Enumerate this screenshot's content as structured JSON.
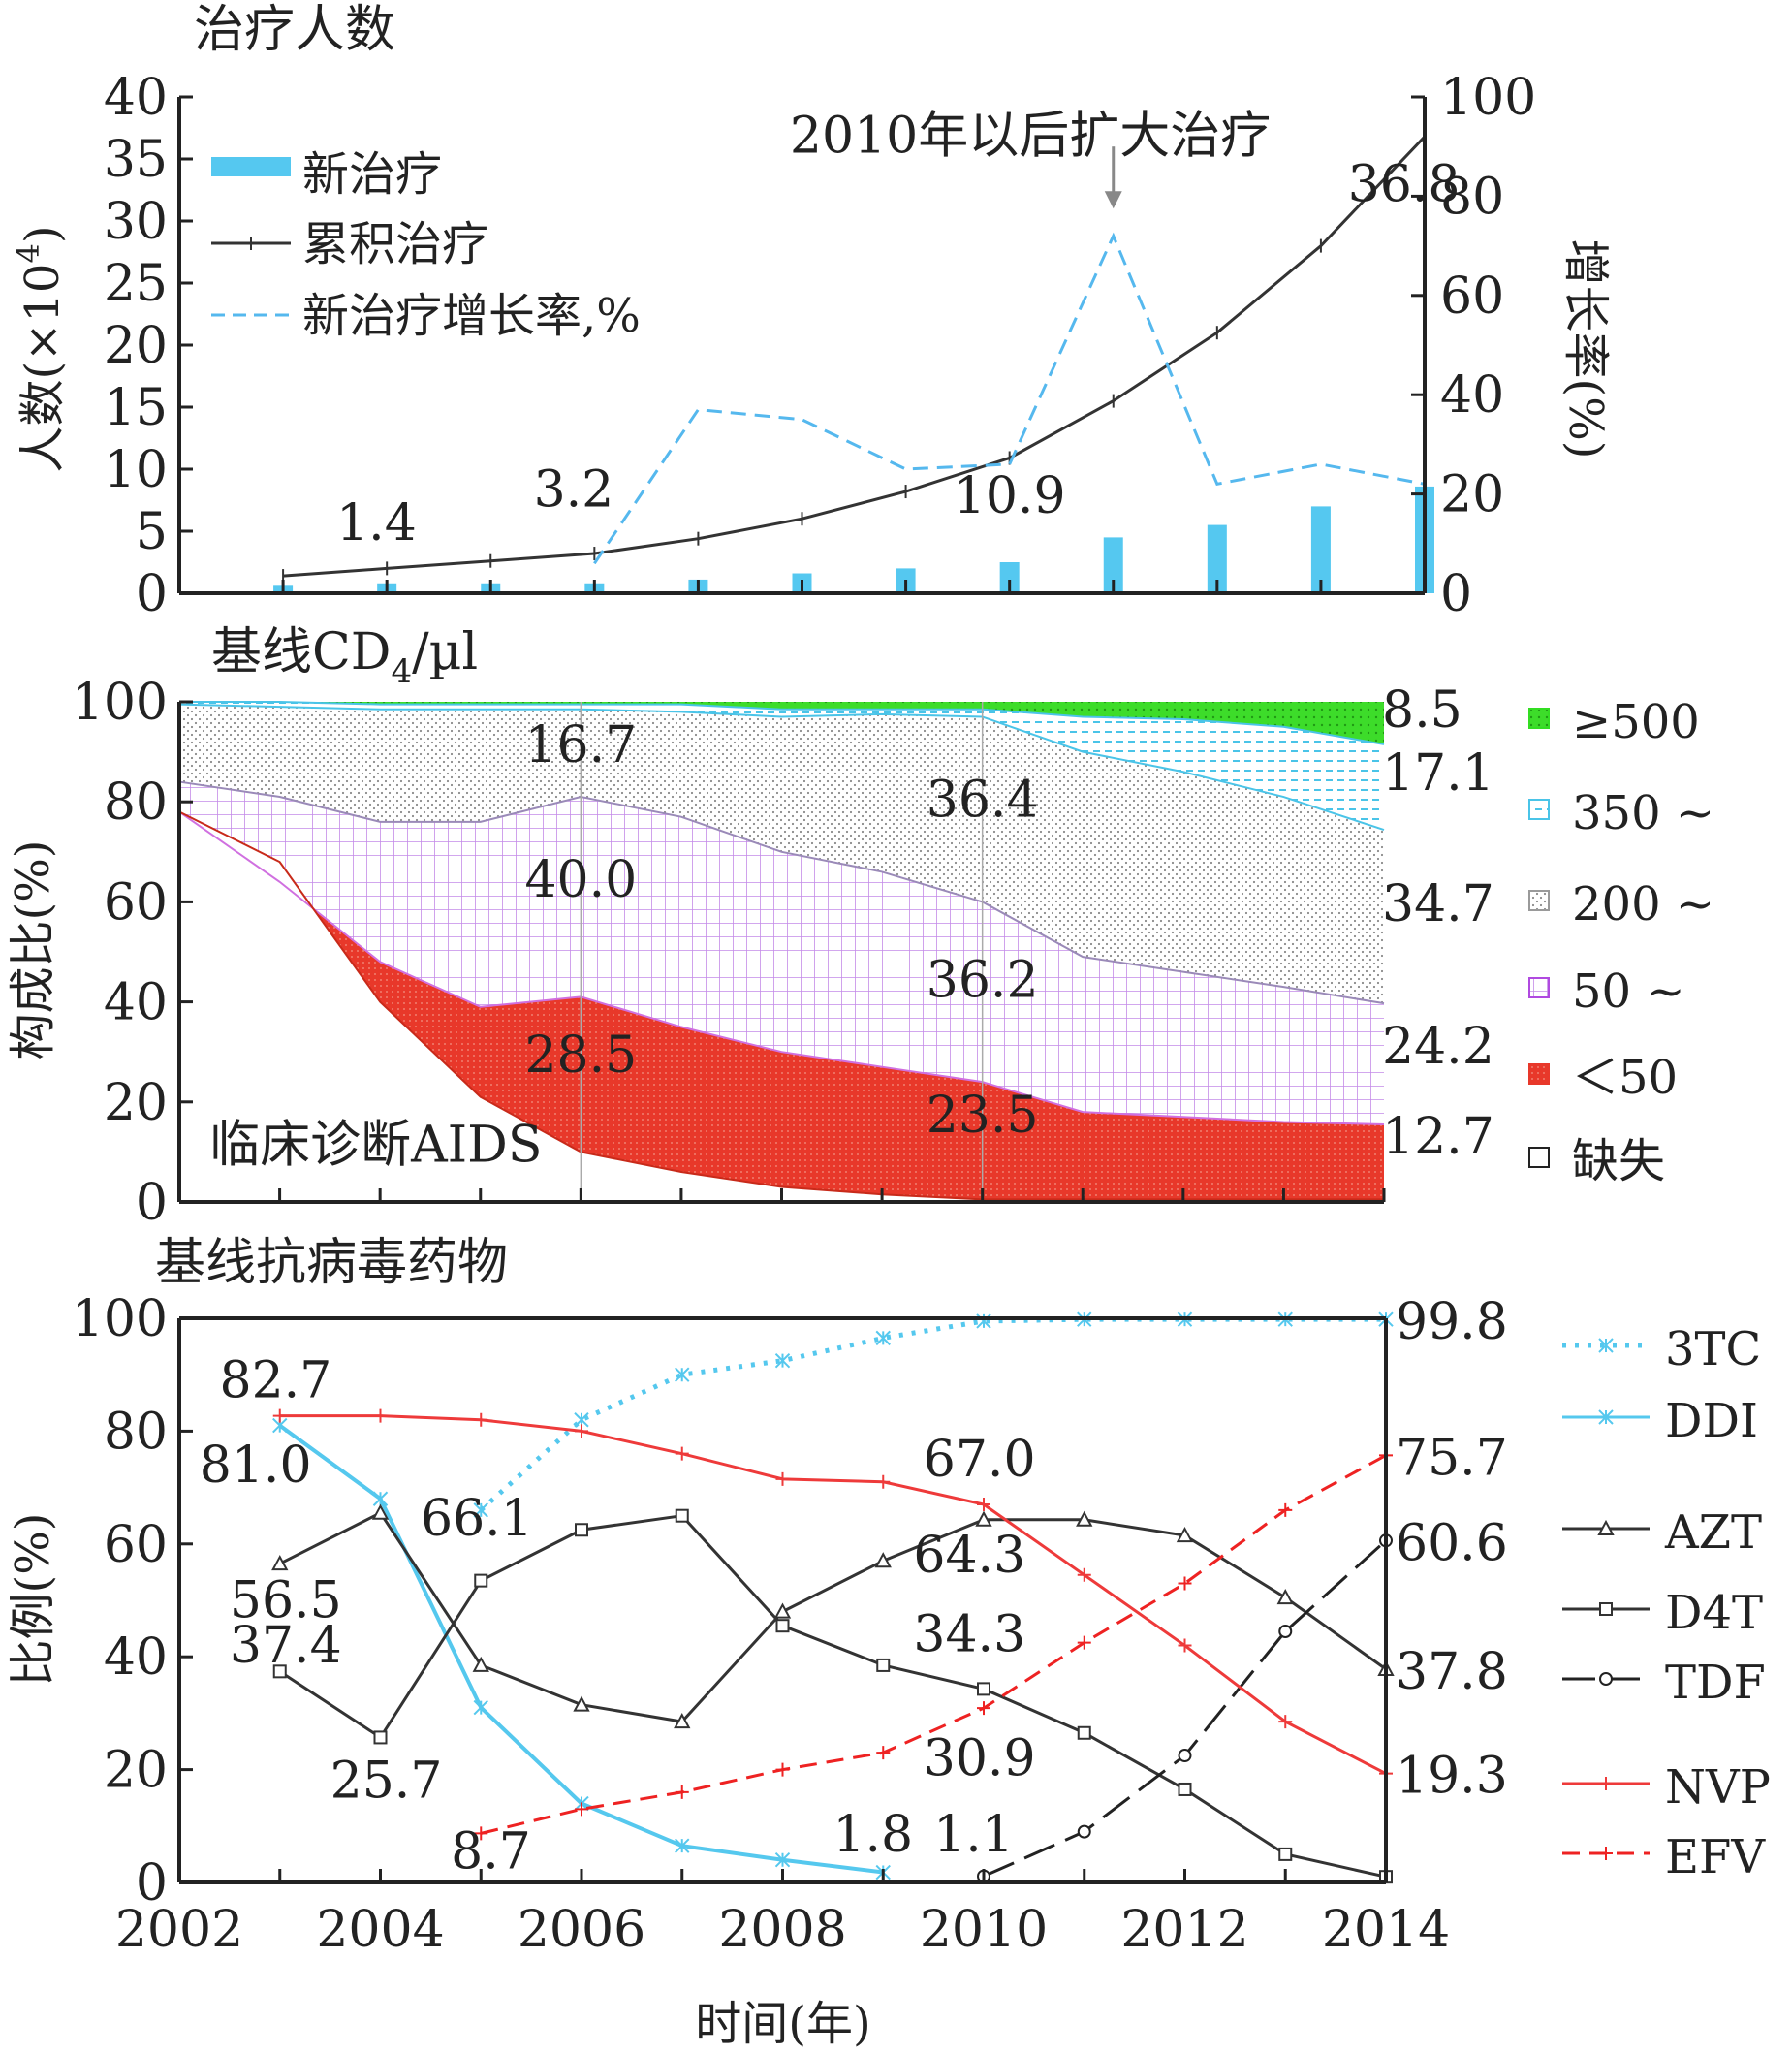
{
  "chart_data": [
    {
      "id": "panel_a",
      "type": "bar+line",
      "title": "治疗人数",
      "x": [
        2002,
        2003,
        2004,
        2005,
        2006,
        2007,
        2008,
        2009,
        2010,
        2011,
        2012,
        2013,
        2014
      ],
      "xlim": [
        2002,
        2014
      ],
      "y_left": {
        "label_text": "人数(×10",
        "label_sup": "4",
        "label_tail": ")",
        "lim": [
          0,
          40
        ],
        "ticks": [
          0,
          5,
          10,
          15,
          20,
          25,
          30,
          35,
          40
        ]
      },
      "y_right": {
        "label": "增长率(%)",
        "lim": [
          0,
          100
        ],
        "ticks": [
          0,
          20,
          40,
          60,
          80,
          100
        ]
      },
      "legend": [
        "新治疗",
        "累积治疗",
        "新治疗增长率,%"
      ],
      "series": [
        {
          "name": "新治疗",
          "kind": "bar",
          "color": "#55c8f0",
          "axis": "left",
          "x": [
            2003,
            2004,
            2005,
            2006,
            2007,
            2008,
            2009,
            2010,
            2011,
            2012,
            2013,
            2014
          ],
          "values": [
            0.6,
            0.8,
            0.8,
            0.8,
            1.1,
            1.6,
            2.0,
            2.5,
            4.5,
            5.5,
            7.0,
            8.6
          ]
        },
        {
          "name": "累积治疗",
          "kind": "line",
          "color": "#333333",
          "axis": "left",
          "x": [
            2003,
            2004,
            2005,
            2006,
            2007,
            2008,
            2009,
            2010,
            2011,
            2012,
            2013,
            2014
          ],
          "values": [
            1.4,
            2.0,
            2.6,
            3.2,
            4.4,
            6.0,
            8.2,
            10.9,
            15.5,
            21.0,
            28.0,
            36.8
          ]
        },
        {
          "name": "新治疗增长率,%",
          "kind": "line-dash",
          "color": "#55b8ee",
          "axis": "right",
          "x": [
            2006,
            2007,
            2008,
            2009,
            2010,
            2011,
            2012,
            2013,
            2014
          ],
          "values": [
            6,
            37,
            35,
            25,
            26,
            72,
            22,
            26,
            22
          ]
        }
      ],
      "annotations": [
        {
          "text": "1.4",
          "x": 2003.9,
          "y": 4.3
        },
        {
          "text": "3.2",
          "x": 2005.8,
          "y": 7.0
        },
        {
          "text": "10.9",
          "x": 2010.0,
          "y": 6.5
        },
        {
          "text": "36.8",
          "x": 2013.8,
          "y": 31.6
        },
        {
          "text": "2010年以后扩大治疗",
          "x": 2010.2,
          "y": 35.5
        }
      ],
      "arrow": {
        "x": 2011,
        "y_from": 36,
        "y_to": 31
      }
    },
    {
      "id": "panel_b",
      "type": "area",
      "title": "基线CD",
      "title_sub": "4",
      "title_tail": "/µl",
      "ylabel": "构成比(%)",
      "ylim": [
        0,
        100
      ],
      "yticks": [
        0,
        20,
        40,
        60,
        80,
        100
      ],
      "x": [
        2002,
        2003,
        2004,
        2005,
        2006,
        2007,
        2008,
        2009,
        2010,
        2011,
        2012,
        2013,
        2014
      ],
      "xlim": [
        2002,
        2014
      ],
      "layer_tops": {
        "clinical": [
          78,
          68,
          40,
          21,
          10,
          6,
          3,
          1.5,
          0.5,
          0.5,
          0.5,
          0.5,
          0.5
        ],
        "lt50": [
          78,
          64,
          48,
          39,
          41,
          35,
          30,
          27,
          24,
          18,
          17,
          16,
          15.5
        ],
        "s50": [
          84,
          81,
          76,
          76,
          81,
          77,
          70,
          66,
          60,
          49,
          46,
          43,
          39.7
        ],
        "s200": [
          99.5,
          99,
          98.5,
          98.5,
          98.5,
          98,
          97,
          97.5,
          97,
          90,
          86,
          81,
          74.4
        ],
        "s350": [
          100,
          100,
          99.5,
          99.5,
          99.5,
          99.5,
          98.5,
          98.5,
          98.5,
          97,
          96.5,
          95,
          91.5
        ]
      },
      "legend": [
        {
          "label": "≥500",
          "color": "#33dd22"
        },
        {
          "label": "350 ~",
          "color": "#4ac4e8"
        },
        {
          "label": "200 ~",
          "color": "#9a9a9a"
        },
        {
          "label": "50 ~",
          "color": "#b04ae0"
        },
        {
          "label": "＜50",
          "color": "#e8382a"
        },
        {
          "label": "缺失",
          "color": "#222222"
        }
      ],
      "annotations": [
        {
          "text": "16.7",
          "x": 2006,
          "y": 88
        },
        {
          "text": "40.0",
          "x": 2006,
          "y": 61
        },
        {
          "text": "28.5",
          "x": 2006,
          "y": 26
        },
        {
          "text": "36.4",
          "x": 2010,
          "y": 77
        },
        {
          "text": "36.2",
          "x": 2010,
          "y": 41
        },
        {
          "text": "23.5",
          "x": 2010,
          "y": 14
        },
        {
          "text": "临床诊断AIDS",
          "x": 2002.3,
          "y": 8
        }
      ],
      "right_labels": [
        "8.5",
        "17.1",
        "34.7",
        "24.2",
        "12.7"
      ]
    },
    {
      "id": "panel_c",
      "type": "line",
      "title": "基线抗病毒药物",
      "ylabel": "比例(%)",
      "xlabel": "时间(年)",
      "ylim": [
        0,
        100
      ],
      "yticks": [
        0,
        20,
        40,
        60,
        80,
        100
      ],
      "xticks": [
        2002,
        2004,
        2006,
        2008,
        2010,
        2012,
        2014
      ],
      "xlim": [
        2002,
        2014
      ],
      "series": [
        {
          "name": "3TC",
          "color": "#55c8ee",
          "dash": "dot",
          "marker": "x",
          "x": [
            2005,
            2006,
            2007,
            2008,
            2009,
            2010,
            2011,
            2012,
            2013,
            2014
          ],
          "values": [
            66,
            82,
            90,
            92.5,
            96.5,
            99.5,
            99.8,
            99.8,
            99.8,
            99.8
          ]
        },
        {
          "name": "DDI",
          "color": "#55c8ee",
          "dash": "solid",
          "marker": "x",
          "x": [
            2003,
            2004,
            2005,
            2006,
            2007,
            2008,
            2009
          ],
          "values": [
            81.0,
            68,
            31,
            14,
            6.5,
            4,
            1.8
          ]
        },
        {
          "name": "AZT",
          "color": "#333333",
          "dash": "solid",
          "marker": "triangle",
          "x": [
            2003,
            2004,
            2005,
            2006,
            2007,
            2008,
            2009,
            2010,
            2011,
            2012,
            2013,
            2014
          ],
          "values": [
            56.5,
            65.5,
            38.5,
            31.5,
            28.5,
            48,
            57,
            64.3,
            64.3,
            61.5,
            50.5,
            37.8
          ]
        },
        {
          "name": "D4T",
          "color": "#333333",
          "dash": "solid",
          "marker": "square",
          "x": [
            2003,
            2004,
            2005,
            2006,
            2007,
            2008,
            2009,
            2010,
            2011,
            2012,
            2013,
            2014
          ],
          "values": [
            37.4,
            25.7,
            53.5,
            62.5,
            65,
            45.5,
            38.5,
            34.3,
            26.5,
            16.5,
            5,
            1
          ]
        },
        {
          "name": "TDF",
          "color": "#222222",
          "dash": "longdash",
          "marker": "circle",
          "x": [
            2010,
            2011,
            2012,
            2013,
            2014
          ],
          "values": [
            1.1,
            9,
            22.5,
            44.5,
            60.6
          ]
        },
        {
          "name": "NVP",
          "color": "#ee3a3a",
          "dash": "solid",
          "marker": "plus",
          "x": [
            2003,
            2004,
            2005,
            2006,
            2007,
            2008,
            2009,
            2010,
            2011,
            2012,
            2013,
            2014
          ],
          "values": [
            82.7,
            82.7,
            82,
            80,
            76,
            71.5,
            71,
            67.0,
            54.5,
            42,
            28.5,
            19.3
          ]
        },
        {
          "name": "EFV",
          "color": "#ee2222",
          "dash": "dash",
          "marker": "plus",
          "x": [
            2005,
            2006,
            2007,
            2008,
            2009,
            2010,
            2011,
            2012,
            2013,
            2014
          ],
          "values": [
            8.7,
            13,
            16,
            20,
            23,
            30.9,
            42.5,
            53,
            66,
            75.7
          ]
        }
      ],
      "annotations": [
        {
          "text": "82.7",
          "x": 2002.4,
          "y": 86
        },
        {
          "text": "81.0",
          "x": 2002.2,
          "y": 71
        },
        {
          "text": "66.1",
          "x": 2004.4,
          "y": 61.5
        },
        {
          "text": "56.5",
          "x": 2002.5,
          "y": 47
        },
        {
          "text": "37.4",
          "x": 2002.5,
          "y": 39
        },
        {
          "text": "25.7",
          "x": 2003.5,
          "y": 15
        },
        {
          "text": "8.7",
          "x": 2004.7,
          "y": 2.5
        },
        {
          "text": "1.8",
          "x": 2008.5,
          "y": 5.5
        },
        {
          "text": "1.1",
          "x": 2009.5,
          "y": 5.5
        },
        {
          "text": "67.0",
          "x": 2009.4,
          "y": 72
        },
        {
          "text": "64.3",
          "x": 2009.3,
          "y": 55
        },
        {
          "text": "34.3",
          "x": 2009.3,
          "y": 41
        },
        {
          "text": "30.9",
          "x": 2009.4,
          "y": 19
        }
      ],
      "right_labels": [
        {
          "text": "99.8",
          "y": 99.8
        },
        {
          "text": "75.7",
          "y": 75.7
        },
        {
          "text": "60.6",
          "y": 60.6
        },
        {
          "text": "37.8",
          "y": 37.8
        },
        {
          "text": "19.3",
          "y": 19.3
        }
      ],
      "legend": [
        "3TC",
        "DDI",
        "AZT",
        "D4T",
        "TDF",
        "NVP",
        "EFV"
      ]
    }
  ]
}
